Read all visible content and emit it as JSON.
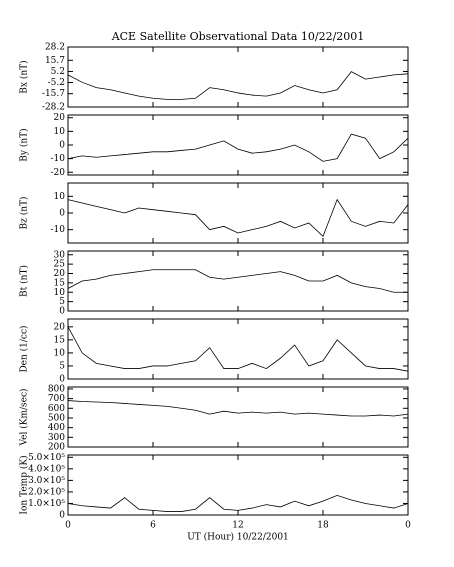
{
  "chart_data": [
    {
      "type": "line",
      "title": "ACE Satellite Observational Data   10/22/2001",
      "ylabel": "Bx (nT)",
      "color": "#000000",
      "x": [
        0,
        1,
        2,
        3,
        4,
        5,
        6,
        7,
        8,
        9,
        10,
        11,
        12,
        13,
        14,
        15,
        16,
        17,
        18,
        19,
        20,
        21,
        22,
        23,
        24
      ],
      "values": [
        2,
        -5,
        -10,
        -12,
        -15,
        -18,
        -20,
        -21,
        -21,
        -20,
        -10,
        -12,
        -15,
        -17,
        -18,
        -15,
        -8,
        -12,
        -15,
        -12,
        5,
        -2,
        0,
        2,
        3
      ],
      "ylim": [
        -28.2,
        28.2
      ],
      "yticks": [
        -28.2,
        -15.7,
        -5.2,
        5.2,
        15.7,
        28.2
      ]
    },
    {
      "type": "line",
      "ylabel": "By (nT)",
      "color": "#000000",
      "x": [
        0,
        1,
        2,
        3,
        4,
        5,
        6,
        7,
        8,
        9,
        10,
        11,
        12,
        13,
        14,
        15,
        16,
        17,
        18,
        19,
        20,
        21,
        22,
        23,
        24
      ],
      "values": [
        -10,
        -8,
        -9,
        -8,
        -7,
        -6,
        -5,
        -5,
        -4,
        -3,
        0,
        3,
        -3,
        -6,
        -5,
        -3,
        0,
        -5,
        -12,
        -10,
        8,
        5,
        -10,
        -5,
        5
      ],
      "ylim": [
        -22,
        22
      ],
      "yticks": [
        -20,
        -10,
        0,
        10,
        20
      ]
    },
    {
      "type": "line",
      "ylabel": "Bz (nT)",
      "color": "#000000",
      "x": [
        0,
        1,
        2,
        3,
        4,
        5,
        6,
        7,
        8,
        9,
        10,
        11,
        12,
        13,
        14,
        15,
        16,
        17,
        18,
        19,
        20,
        21,
        22,
        23,
        24
      ],
      "values": [
        8,
        6,
        4,
        2,
        0,
        3,
        2,
        1,
        0,
        -1,
        -10,
        -8,
        -12,
        -10,
        -8,
        -5,
        -9,
        -6,
        -14,
        8,
        -5,
        -8,
        -5,
        -6,
        5
      ],
      "ylim": [
        -18,
        18
      ],
      "yticks": [
        -10,
        0,
        10
      ]
    },
    {
      "type": "line",
      "ylabel": "Bt (nT)",
      "color": "#000000",
      "x": [
        0,
        1,
        2,
        3,
        4,
        5,
        6,
        7,
        8,
        9,
        10,
        11,
        12,
        13,
        14,
        15,
        16,
        17,
        18,
        19,
        20,
        21,
        22,
        23,
        24
      ],
      "values": [
        12,
        16,
        17,
        19,
        20,
        21,
        22,
        22,
        22,
        22,
        18,
        17,
        18,
        19,
        20,
        21,
        19,
        16,
        16,
        19,
        15,
        13,
        12,
        10,
        10
      ],
      "ylim": [
        0,
        32
      ],
      "yticks": [
        0,
        5,
        10,
        15,
        20,
        25,
        30
      ]
    },
    {
      "type": "line",
      "ylabel": "Den (1/cc)",
      "color": "#000000",
      "x": [
        0,
        1,
        2,
        3,
        4,
        5,
        6,
        7,
        8,
        9,
        10,
        11,
        12,
        13,
        14,
        15,
        16,
        17,
        18,
        19,
        20,
        21,
        22,
        23,
        24
      ],
      "values": [
        20,
        10,
        6,
        5,
        4,
        4,
        5,
        5,
        6,
        7,
        12,
        4,
        4,
        6,
        4,
        8,
        13,
        5,
        7,
        15,
        10,
        5,
        4,
        4,
        3
      ],
      "ylim": [
        0,
        23
      ],
      "yticks": [
        0,
        5,
        10,
        15,
        20
      ]
    },
    {
      "type": "line",
      "ylabel": "Vel (Km/sec)",
      "color": "#000000",
      "x": [
        0,
        1,
        2,
        3,
        4,
        5,
        6,
        7,
        8,
        9,
        10,
        11,
        12,
        13,
        14,
        15,
        16,
        17,
        18,
        19,
        20,
        21,
        22,
        23,
        24
      ],
      "values": [
        680,
        670,
        665,
        660,
        650,
        640,
        630,
        620,
        600,
        580,
        540,
        570,
        550,
        560,
        550,
        560,
        540,
        550,
        540,
        530,
        520,
        520,
        530,
        520,
        540
      ],
      "ylim": [
        200,
        820
      ],
      "yticks": [
        200,
        300,
        400,
        500,
        600,
        700,
        800
      ]
    },
    {
      "type": "line",
      "ylabel": "Ion Temp (K)",
      "xlabel": "UT (Hour)   10/22/2001",
      "color": "#000000",
      "x": [
        0,
        1,
        2,
        3,
        4,
        5,
        6,
        7,
        8,
        9,
        10,
        11,
        12,
        13,
        14,
        15,
        16,
        17,
        18,
        19,
        20,
        21,
        22,
        23,
        24
      ],
      "values": [
        100000,
        80000,
        70000,
        60000,
        150000,
        50000,
        40000,
        30000,
        30000,
        50000,
        150000,
        50000,
        40000,
        60000,
        90000,
        70000,
        120000,
        80000,
        120000,
        170000,
        130000,
        100000,
        80000,
        60000,
        100000
      ],
      "ylim": [
        0,
        520000
      ],
      "yticks": [
        0,
        {
          "value": 100000,
          "label": "1.0×10⁵"
        },
        {
          "value": 200000,
          "label": "2.0×10⁵"
        },
        {
          "value": 300000,
          "label": "3.0×10⁵"
        },
        {
          "value": 400000,
          "label": "4.0×10⁵"
        },
        {
          "value": 500000,
          "label": "5.0×10⁵"
        }
      ],
      "xlim": [
        0,
        24
      ],
      "xticks": [
        0,
        6,
        12,
        18,
        {
          "value": 24,
          "label": "0"
        }
      ]
    }
  ]
}
